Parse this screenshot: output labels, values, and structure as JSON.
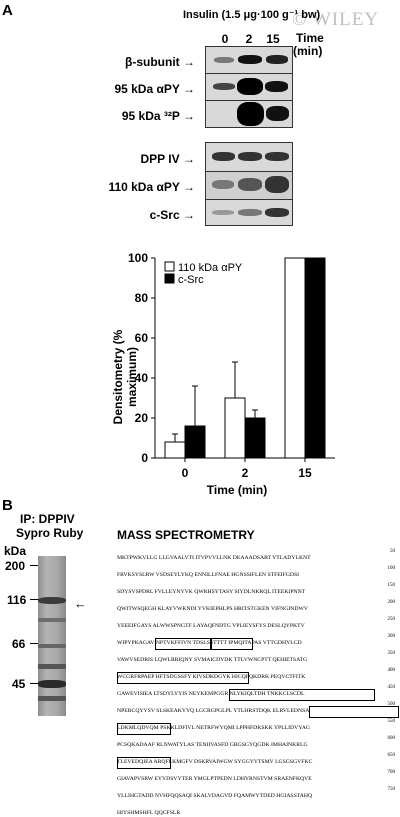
{
  "watermark": "© WILEY",
  "panel_a": {
    "letter": "A",
    "header": "Insulin (1.5 μg·100 g⁻¹ bw)",
    "time_label": "Time",
    "time_unit": "(min)",
    "lanes": [
      "0",
      "2",
      "15"
    ],
    "rows": [
      {
        "label": "β-subunit"
      },
      {
        "label": "95 kDa αPY"
      },
      {
        "label": "95 kDa ³²P"
      },
      {
        "label": "DPP IV"
      },
      {
        "label": "110 kDa αPY"
      },
      {
        "label": "c-Src"
      }
    ],
    "chart_data": {
      "type": "bar",
      "categories": [
        "0",
        "2",
        "15"
      ],
      "series": [
        {
          "name": "110 kDa αPY",
          "color": "#ffffff",
          "values": [
            8,
            30,
            100
          ],
          "errors": [
            4,
            18,
            0
          ]
        },
        {
          "name": "c-Src",
          "color": "#000000",
          "values": [
            16,
            20,
            100
          ],
          "errors": [
            20,
            4,
            0
          ]
        }
      ],
      "xlabel": "Time (min)",
      "ylabel": "Densitometry (% maximum)",
      "ylim": [
        0,
        100
      ],
      "yticks": [
        "0",
        "20",
        "40",
        "60",
        "80",
        "100"
      ],
      "legend_position": "top-left",
      "grid": false
    }
  },
  "panel_b": {
    "letter": "B",
    "gel_title_1": "IP: DPPIV",
    "gel_title_2": "Sypro Ruby",
    "kda_label": "kDa",
    "markers": [
      "200",
      "116",
      "66",
      "45"
    ],
    "ms_title": "MASS SPECTROMETRY",
    "sequence_numbers": [
      "50",
      "100",
      "150",
      "200",
      "250",
      "300",
      "350",
      "400",
      "450",
      "500",
      "550",
      "600",
      "650",
      "700",
      "750"
    ],
    "sequence": [
      "MKTPWKVLLG LLGVAALVTI ITVPVVLLNK DEAAADSART YTLADYLKNT",
      "FRVKSYSLRW VSDSEYLYKQ ENNILLFNAE HGNSSIFLEN STFEIFGDSI",
      "SDYSVSPDRL FVLLEYNYVK QWRHSYTASY SIYDLNKRQL ITEEKIPNNT",
      "QWITWSQEGH KLAYVWKNDI YVKIEPHLPS HRITSTGKEN VIFNGINDWV",
      "YEEEIFGAYS ALWWSPNGTF LAYAQFNDTG VPLIEYSFYS DESLQYPKTV",
      "WIPYPKAGAV NPTVKFFIVN TDSLSSTTTT IPMQITAPAS VTTGDHYLCD",
      "VAWVSEDRIS LQWLRRIQNY SVMAICDYDK TTLVWNCPTT QEHIETSATG",
      "WCGRFRPAEP HFTSDGSSFY KIVSDKDGYK HICQFQKDRK PEQVCTFITK",
      "GAWEVISIEA LTSDYLYYIS NEYKEMPGGR NLYKIQLTDH TNKKCLSCDL",
      "NPERCQYYSV SLSKEAKYYQ LGCRGPGLPL YTLHRSTDQK ELRVLEDNSA",
      "LDKMLQDVQM PSKKLDFIVL NETRFWYQMI LPPHFDKSKK YPLLIDVYAG",
      "PCSQKADAAF RLNWATYLAS TENIIVASFD GRGSGYQGDK IMHAINKRLG",
      "TLEVEDQIEA ARQFLKMGFV DSKRVAIWGW SYGGYVTSMV LGSGSGVFKC",
      "GIAVAPVSRW EYYDSVYTER YMGLPTPEDN LDHYRNSTVM SRAENFKQVE",
      "YLLIHGTADD NVHFQQSAQI SKALVDAGVD FQAMWYTDED HGIASSTAHQ",
      "HIYSHMSHFL QQCFSLR"
    ]
  }
}
